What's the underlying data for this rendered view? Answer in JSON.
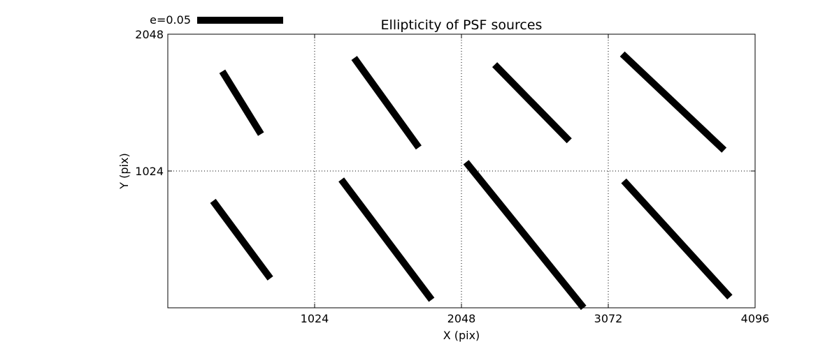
{
  "chart_data": {
    "type": "vector-field",
    "title": "Ellipticity of PSF sources",
    "xlabel": "X (pix)",
    "ylabel": "Y (pix)",
    "xlim": [
      0,
      4096
    ],
    "ylim": [
      0,
      2048
    ],
    "x_ticks": [
      1024,
      2048,
      3072,
      4096
    ],
    "x_tick_labels": [
      "1024",
      "2048",
      "3072",
      "4096"
    ],
    "y_ticks": [
      1024,
      2048
    ],
    "y_tick_labels": [
      "1024",
      "2048"
    ],
    "grid": true,
    "grid_style": "dotted",
    "legend": {
      "label": "e=0.05",
      "placement": "top-left, above plot",
      "reference_e": 0.05
    },
    "line_color": "#000000",
    "sticks": [
      {
        "x1": 380,
        "y1": 1770,
        "x2": 650,
        "y2": 1300
      },
      {
        "x1": 315,
        "y1": 800,
        "x2": 715,
        "y2": 220
      },
      {
        "x1": 1300,
        "y1": 1870,
        "x2": 1750,
        "y2": 1200
      },
      {
        "x1": 1210,
        "y1": 960,
        "x2": 1840,
        "y2": 60
      },
      {
        "x1": 2280,
        "y1": 1820,
        "x2": 2800,
        "y2": 1250
      },
      {
        "x1": 2080,
        "y1": 1090,
        "x2": 2900,
        "y2": 0
      },
      {
        "x1": 3170,
        "y1": 1900,
        "x2": 3880,
        "y2": 1180
      },
      {
        "x1": 3180,
        "y1": 950,
        "x2": 3920,
        "y2": 80
      }
    ]
  }
}
